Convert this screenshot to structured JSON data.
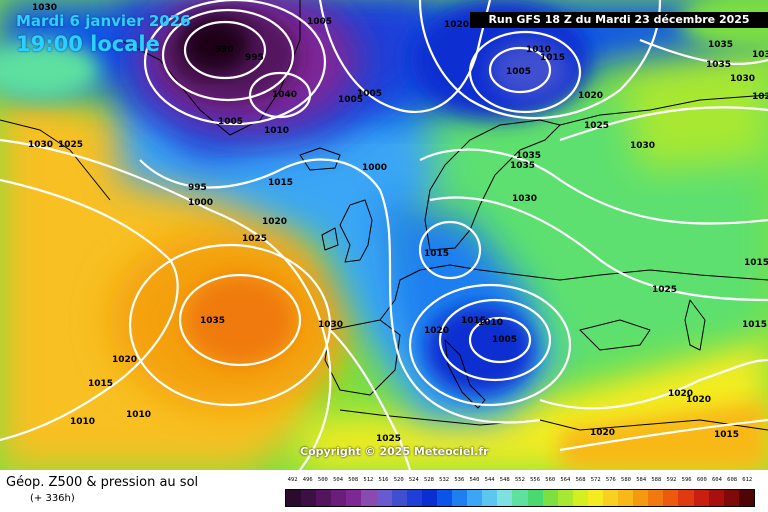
{
  "header": {
    "date": "Mardi 6 janvier 2026",
    "time": "19:00 locale",
    "run": "Run GFS 18 Z du Mardi 23 décembre 2025"
  },
  "copyright": "Copyright © 2025 Meteociel.fr",
  "legend": {
    "title": "Géop. Z500 & pression au sol",
    "subtitle": "(+ 336h)",
    "scale_values": [
      "492",
      "496",
      "500",
      "504",
      "508",
      "512",
      "516",
      "520",
      "524",
      "528",
      "532",
      "536",
      "540",
      "544",
      "548",
      "552",
      "556",
      "560",
      "564",
      "568",
      "572",
      "576",
      "580",
      "584",
      "588",
      "592",
      "596",
      "600",
      "604",
      "608",
      "612"
    ],
    "scale_colors": [
      "#2b0a2e",
      "#3d0f45",
      "#52155e",
      "#6a1d7a",
      "#7e2896",
      "#8a4ab0",
      "#6a5ad0",
      "#3f4fd0",
      "#1f3fd8",
      "#0a2fd0",
      "#0a55e8",
      "#1f7ff0",
      "#3aa6f5",
      "#5cc6f0",
      "#7fe0e0",
      "#5de0a0",
      "#4ad870",
      "#7be040",
      "#a8e830",
      "#d4ee20",
      "#f4ec20",
      "#f8d020",
      "#f8b818",
      "#f49a10",
      "#f07a10",
      "#ec5a10",
      "#e03a10",
      "#c82010",
      "#a81010",
      "#800a0a",
      "#500505"
    ]
  },
  "isobar_labels": [
    {
      "text": "990"
    },
    {
      "text": "995"
    },
    {
      "text": "1000"
    },
    {
      "text": "1005"
    },
    {
      "text": "1010"
    },
    {
      "text": "1015"
    },
    {
      "text": "1020"
    },
    {
      "text": "1025"
    },
    {
      "text": "1030"
    },
    {
      "text": "1035"
    },
    {
      "text": "1040"
    }
  ],
  "colors": {
    "core_dark": "#1a0414",
    "deep_blue": "#0a2fd0",
    "light_blue": "#3aa6f5",
    "green": "#4ad870",
    "yellow": "#f4ec20",
    "orange": "#f49a10",
    "contour": "#ffffff"
  }
}
